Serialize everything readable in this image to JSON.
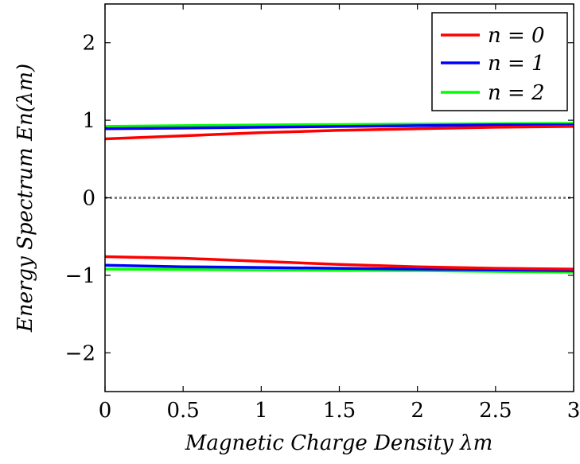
{
  "chart_data": {
    "type": "line",
    "title": "",
    "xlabel": "Magnetic Charge Density λm",
    "ylabel": "Energy Spectrum En(λm)",
    "xlim": [
      0,
      3
    ],
    "ylim": [
      -2.5,
      2.5
    ],
    "x_ticks": [
      "0",
      "0.5",
      "1",
      "1.5",
      "2",
      "2.5",
      "3"
    ],
    "y_ticks": [
      "−2",
      "−1",
      "0",
      "1",
      "2"
    ],
    "grid": false,
    "legend_position": "top-right",
    "reference_line": {
      "y": 0,
      "style": "dotted",
      "color": "#808080"
    },
    "x": [
      0,
      0.5,
      1,
      1.5,
      2,
      2.5,
      3
    ],
    "series": [
      {
        "name": "n = 0",
        "color": "#ff0000",
        "branches": [
          [
            0.76,
            0.8,
            0.84,
            0.87,
            0.89,
            0.91,
            0.92
          ],
          [
            -0.76,
            -0.78,
            -0.82,
            -0.86,
            -0.89,
            -0.91,
            -0.92
          ]
        ]
      },
      {
        "name": "n = 1",
        "color": "#0000ff",
        "branches": [
          [
            0.89,
            0.9,
            0.91,
            0.92,
            0.93,
            0.94,
            0.94
          ],
          [
            -0.87,
            -0.89,
            -0.9,
            -0.91,
            -0.92,
            -0.93,
            -0.94
          ]
        ]
      },
      {
        "name": "n = 2",
        "color": "#00ff00",
        "branches": [
          [
            0.92,
            0.93,
            0.94,
            0.945,
            0.95,
            0.955,
            0.96
          ],
          [
            -0.92,
            -0.925,
            -0.93,
            -0.935,
            -0.94,
            -0.95,
            -0.96
          ]
        ]
      }
    ]
  }
}
